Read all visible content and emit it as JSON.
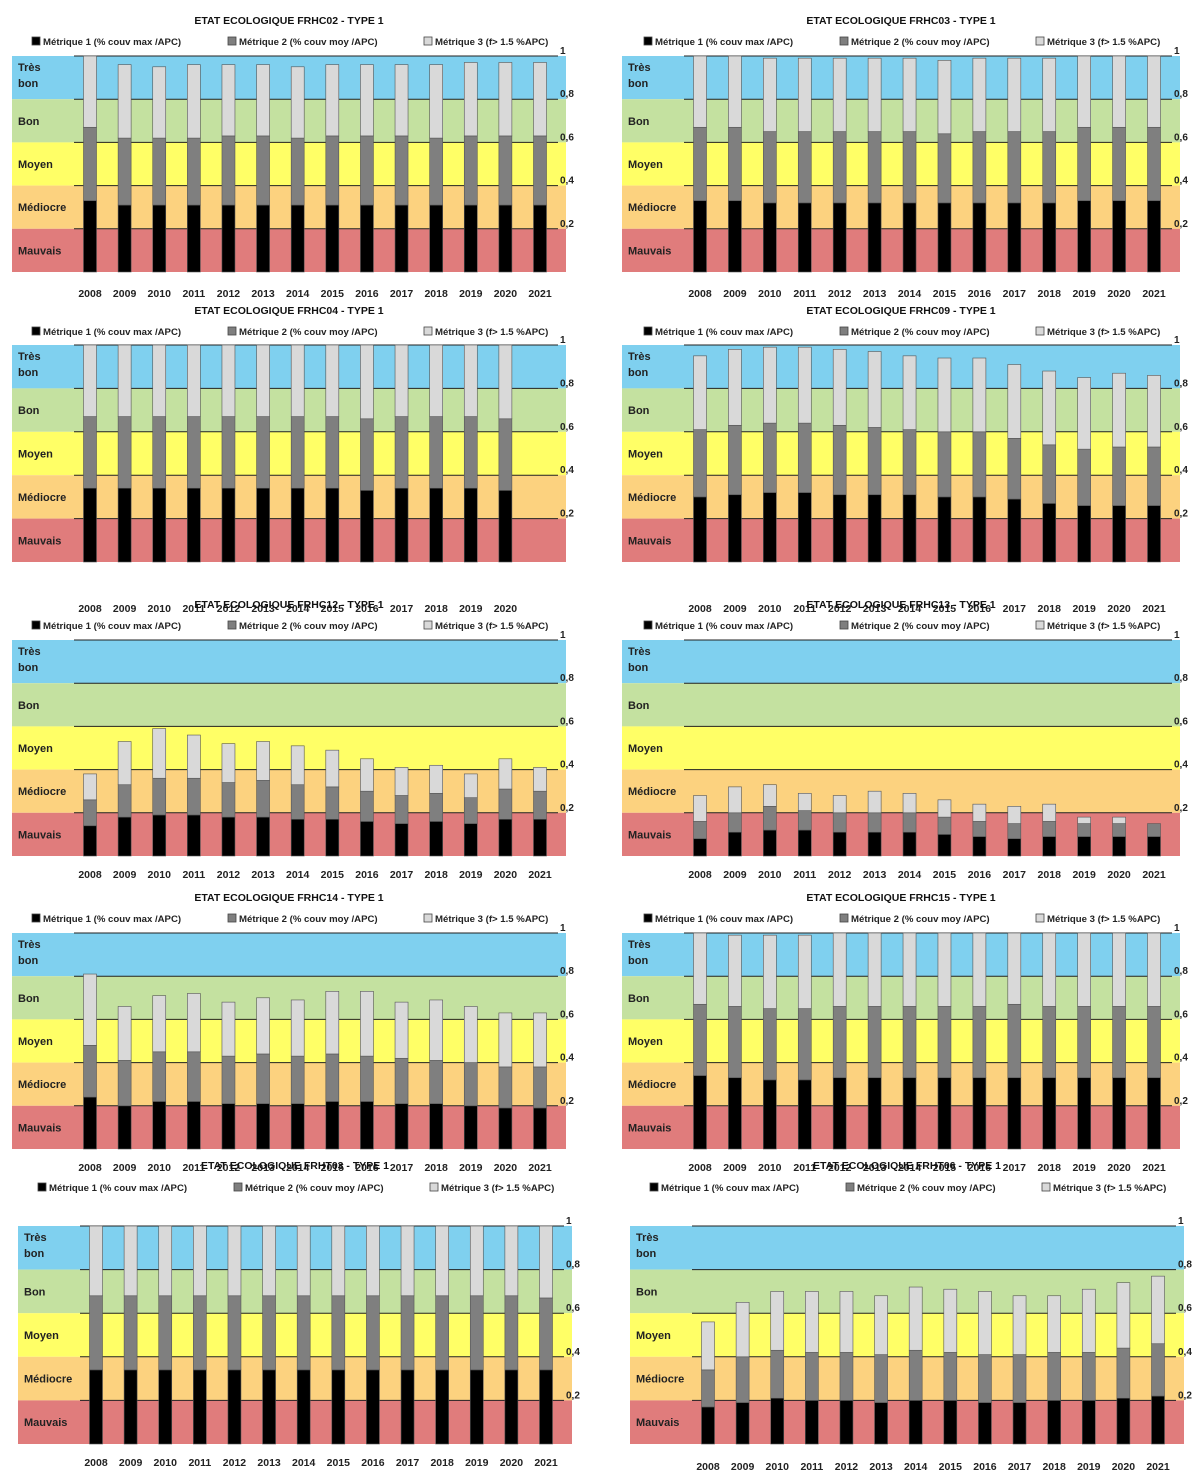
{
  "common": {
    "legend": [
      "Métrique 1 (% couv max /APC)",
      "Métrique 2 (% couv moy /APC)",
      "Métrique 3 (f> 1.5 %APC)"
    ],
    "series_colors": [
      "#000000",
      "#7f7f7f",
      "#d9d9d9"
    ],
    "bands": [
      {
        "label": "Très bon",
        "from": 0.8,
        "to": 1.0,
        "color": "#7fd0ef"
      },
      {
        "label": "Bon",
        "from": 0.6,
        "to": 0.8,
        "color": "#c4e1a0"
      },
      {
        "label": "Moyen",
        "from": 0.4,
        "to": 0.6,
        "color": "#ffff66"
      },
      {
        "label": "Médiocre",
        "from": 0.2,
        "to": 0.4,
        "color": "#fcd27f"
      },
      {
        "label": "Mauvais",
        "from": 0.0,
        "to": 0.2,
        "color": "#e07c7c"
      }
    ],
    "y_ticks": [
      "0,2",
      "0,4",
      "0,6",
      "0,8",
      "1"
    ],
    "ylim": [
      0,
      1
    ]
  },
  "chart_data": [
    {
      "type": "bar",
      "stacked": true,
      "title": "ETAT ECOLOGIQUE FRHC02 - TYPE 1",
      "categories": [
        "2008",
        "2009",
        "2010",
        "2011",
        "2012",
        "2013",
        "2014",
        "2015",
        "2016",
        "2017",
        "2018",
        "2019",
        "2020",
        "2021"
      ],
      "series": [
        {
          "name": "Métrique 1 (% couv max /APC)",
          "values": [
            0.33,
            0.31,
            0.31,
            0.31,
            0.31,
            0.31,
            0.31,
            0.31,
            0.31,
            0.31,
            0.31,
            0.31,
            0.31,
            0.31
          ]
        },
        {
          "name": "Métrique 2 (% couv moy /APC)",
          "values": [
            0.34,
            0.31,
            0.31,
            0.31,
            0.32,
            0.32,
            0.31,
            0.32,
            0.32,
            0.32,
            0.31,
            0.32,
            0.32,
            0.32
          ]
        },
        {
          "name": "Métrique 3 (f> 1.5 %APC)",
          "values": [
            0.33,
            0.34,
            0.33,
            0.34,
            0.33,
            0.33,
            0.33,
            0.33,
            0.33,
            0.33,
            0.34,
            0.34,
            0.34,
            0.34
          ]
        }
      ],
      "ylim": [
        0,
        1
      ]
    },
    {
      "type": "bar",
      "stacked": true,
      "title": "ETAT ECOLOGIQUE FRHC03 - TYPE 1",
      "categories": [
        "2008",
        "2009",
        "2010",
        "2011",
        "2012",
        "2013",
        "2014",
        "2015",
        "2016",
        "2017",
        "2018",
        "2019",
        "2020",
        "2021"
      ],
      "series": [
        {
          "name": "Métrique 1 (% couv max /APC)",
          "values": [
            0.33,
            0.33,
            0.32,
            0.32,
            0.32,
            0.32,
            0.32,
            0.32,
            0.32,
            0.32,
            0.32,
            0.33,
            0.33,
            0.33
          ]
        },
        {
          "name": "Métrique 2 (% couv moy /APC)",
          "values": [
            0.34,
            0.34,
            0.33,
            0.33,
            0.33,
            0.33,
            0.33,
            0.32,
            0.33,
            0.33,
            0.33,
            0.34,
            0.34,
            0.34
          ]
        },
        {
          "name": "Métrique 3 (f> 1.5 %APC)",
          "values": [
            0.33,
            0.33,
            0.34,
            0.34,
            0.34,
            0.34,
            0.34,
            0.34,
            0.34,
            0.34,
            0.34,
            0.33,
            0.33,
            0.33
          ]
        }
      ],
      "ylim": [
        0,
        1
      ]
    },
    {
      "type": "bar",
      "stacked": true,
      "title": "ETAT ECOLOGIQUE FRHC04 - TYPE 1",
      "categories": [
        "2008",
        "2009",
        "2010",
        "2011",
        "2012",
        "2013",
        "2014",
        "2015",
        "2016",
        "2017",
        "2018",
        "2019",
        "2020"
      ],
      "series": [
        {
          "name": "Métrique 1 (% couv max /APC)",
          "values": [
            0.34,
            0.34,
            0.34,
            0.34,
            0.34,
            0.34,
            0.34,
            0.34,
            0.33,
            0.34,
            0.34,
            0.34,
            0.33
          ]
        },
        {
          "name": "Métrique 2 (% couv moy /APC)",
          "values": [
            0.33,
            0.33,
            0.33,
            0.33,
            0.33,
            0.33,
            0.33,
            0.33,
            0.33,
            0.33,
            0.33,
            0.33,
            0.33
          ]
        },
        {
          "name": "Métrique 3 (f> 1.5 %APC)",
          "values": [
            0.33,
            0.33,
            0.33,
            0.33,
            0.33,
            0.33,
            0.33,
            0.33,
            0.34,
            0.33,
            0.33,
            0.33,
            0.34
          ]
        }
      ],
      "ylim": [
        0,
        1
      ]
    },
    {
      "type": "bar",
      "stacked": true,
      "title": "ETAT ECOLOGIQUE FRHC09 - TYPE 1",
      "categories": [
        "2008",
        "2009",
        "2010",
        "2011",
        "2012",
        "2013",
        "2014",
        "2015",
        "2016",
        "2017",
        "2018",
        "2019",
        "2020",
        "2021"
      ],
      "series": [
        {
          "name": "Métrique 1 (% couv max /APC)",
          "values": [
            0.3,
            0.31,
            0.32,
            0.32,
            0.31,
            0.31,
            0.31,
            0.3,
            0.3,
            0.29,
            0.27,
            0.26,
            0.26,
            0.26
          ]
        },
        {
          "name": "Métrique 2 (% couv moy /APC)",
          "values": [
            0.31,
            0.32,
            0.32,
            0.32,
            0.32,
            0.31,
            0.3,
            0.3,
            0.3,
            0.28,
            0.27,
            0.26,
            0.27,
            0.27
          ]
        },
        {
          "name": "Métrique 3 (f> 1.5 %APC)",
          "values": [
            0.34,
            0.35,
            0.35,
            0.35,
            0.35,
            0.35,
            0.34,
            0.34,
            0.34,
            0.34,
            0.34,
            0.33,
            0.34,
            0.33
          ]
        }
      ],
      "ylim": [
        0,
        1
      ]
    },
    {
      "type": "bar",
      "stacked": true,
      "title": "ETAT ECOLOGIQUE FRHC12 - TYPE 1",
      "categories": [
        "2008",
        "2009",
        "2010",
        "2011",
        "2012",
        "2013",
        "2014",
        "2015",
        "2016",
        "2017",
        "2018",
        "2019",
        "2020",
        "2021"
      ],
      "series": [
        {
          "name": "Métrique 1 (% couv max /APC)",
          "values": [
            0.14,
            0.18,
            0.19,
            0.19,
            0.18,
            0.18,
            0.17,
            0.17,
            0.16,
            0.15,
            0.16,
            0.15,
            0.17,
            0.17
          ]
        },
        {
          "name": "Métrique 2 (% couv moy /APC)",
          "values": [
            0.12,
            0.15,
            0.17,
            0.17,
            0.16,
            0.17,
            0.16,
            0.15,
            0.14,
            0.13,
            0.13,
            0.12,
            0.14,
            0.13
          ]
        },
        {
          "name": "Métrique 3 (f> 1.5 %APC)",
          "values": [
            0.12,
            0.2,
            0.23,
            0.2,
            0.18,
            0.18,
            0.18,
            0.17,
            0.15,
            0.13,
            0.13,
            0.11,
            0.14,
            0.11
          ]
        }
      ],
      "ylim": [
        0,
        1
      ]
    },
    {
      "type": "bar",
      "stacked": true,
      "title": "ETAT ECOLOGIQUE FRHC13 - TYPE 1",
      "categories": [
        "2008",
        "2009",
        "2010",
        "2011",
        "2012",
        "2013",
        "2014",
        "2015",
        "2016",
        "2017",
        "2018",
        "2019",
        "2020",
        "2021"
      ],
      "series": [
        {
          "name": "Métrique 1 (% couv max /APC)",
          "values": [
            0.08,
            0.11,
            0.12,
            0.12,
            0.11,
            0.11,
            0.11,
            0.1,
            0.09,
            0.08,
            0.09,
            0.09,
            0.09,
            0.09
          ]
        },
        {
          "name": "Métrique 2 (% couv moy /APC)",
          "values": [
            0.08,
            0.09,
            0.11,
            0.09,
            0.09,
            0.09,
            0.09,
            0.08,
            0.07,
            0.07,
            0.07,
            0.06,
            0.06,
            0.06
          ]
        },
        {
          "name": "Métrique 3 (f> 1.5 %APC)",
          "values": [
            0.12,
            0.12,
            0.1,
            0.08,
            0.08,
            0.1,
            0.09,
            0.08,
            0.08,
            0.08,
            0.08,
            0.03,
            0.03,
            0.0
          ]
        }
      ],
      "ylim": [
        0,
        1
      ]
    },
    {
      "type": "bar",
      "stacked": true,
      "title": "ETAT ECOLOGIQUE FRHC14 - TYPE 1",
      "categories": [
        "2008",
        "2009",
        "2010",
        "2011",
        "2012",
        "2013",
        "2014",
        "2015",
        "2016",
        "2017",
        "2018",
        "2019",
        "2020",
        "2021"
      ],
      "series": [
        {
          "name": "Métrique 1 (% couv max /APC)",
          "values": [
            0.24,
            0.2,
            0.22,
            0.22,
            0.21,
            0.21,
            0.21,
            0.22,
            0.22,
            0.21,
            0.21,
            0.2,
            0.19,
            0.19
          ]
        },
        {
          "name": "Métrique 2 (% couv moy /APC)",
          "values": [
            0.24,
            0.21,
            0.23,
            0.23,
            0.22,
            0.23,
            0.22,
            0.22,
            0.21,
            0.21,
            0.2,
            0.2,
            0.19,
            0.19
          ]
        },
        {
          "name": "Métrique 3 (f> 1.5 %APC)",
          "values": [
            0.33,
            0.25,
            0.26,
            0.27,
            0.25,
            0.26,
            0.26,
            0.29,
            0.3,
            0.26,
            0.28,
            0.26,
            0.25,
            0.25
          ]
        }
      ],
      "ylim": [
        0,
        1
      ]
    },
    {
      "type": "bar",
      "stacked": true,
      "title": "ETAT ECOLOGIQUE FRHC15 - TYPE 1",
      "categories": [
        "2008",
        "2009",
        "2010",
        "2011",
        "2012",
        "2013",
        "2014",
        "2015",
        "2016",
        "2017",
        "2018",
        "2019",
        "2020",
        "2021"
      ],
      "series": [
        {
          "name": "Métrique 1 (% couv max /APC)",
          "values": [
            0.34,
            0.33,
            0.32,
            0.32,
            0.33,
            0.33,
            0.33,
            0.33,
            0.33,
            0.33,
            0.33,
            0.33,
            0.33,
            0.33
          ]
        },
        {
          "name": "Métrique 2 (% couv moy /APC)",
          "values": [
            0.33,
            0.33,
            0.33,
            0.33,
            0.33,
            0.33,
            0.33,
            0.33,
            0.33,
            0.34,
            0.33,
            0.33,
            0.33,
            0.33
          ]
        },
        {
          "name": "Métrique 3 (f> 1.5 %APC)",
          "values": [
            0.33,
            0.33,
            0.34,
            0.34,
            0.34,
            0.34,
            0.34,
            0.34,
            0.34,
            0.33,
            0.34,
            0.34,
            0.34,
            0.34
          ]
        }
      ],
      "ylim": [
        0,
        1
      ]
    },
    {
      "type": "bar",
      "stacked": true,
      "title": "ETAT ECOLOGIQUE FRHT03 - TYPE 1",
      "categories": [
        "2008",
        "2009",
        "2010",
        "2011",
        "2012",
        "2013",
        "2014",
        "2015",
        "2016",
        "2017",
        "2018",
        "2019",
        "2020",
        "2021"
      ],
      "series": [
        {
          "name": "Métrique 1 (% couv max /APC)",
          "values": [
            0.34,
            0.34,
            0.34,
            0.34,
            0.34,
            0.34,
            0.34,
            0.34,
            0.34,
            0.34,
            0.34,
            0.34,
            0.34,
            0.34
          ]
        },
        {
          "name": "Métrique 2 (% couv moy /APC)",
          "values": [
            0.34,
            0.34,
            0.34,
            0.34,
            0.34,
            0.34,
            0.34,
            0.34,
            0.34,
            0.34,
            0.34,
            0.34,
            0.34,
            0.33
          ]
        },
        {
          "name": "Métrique 3 (f> 1.5 %APC)",
          "values": [
            0.32,
            0.32,
            0.32,
            0.32,
            0.32,
            0.32,
            0.32,
            0.32,
            0.32,
            0.32,
            0.32,
            0.32,
            0.32,
            0.33
          ]
        }
      ],
      "ylim": [
        0,
        1
      ]
    },
    {
      "type": "bar",
      "stacked": true,
      "title": "ETAT ECOLOGIQUE FRHT06 - TYPE 1",
      "categories": [
        "2008",
        "2009",
        "2010",
        "2011",
        "2012",
        "2013",
        "2014",
        "2015",
        "2016",
        "2017",
        "2018",
        "2019",
        "2020",
        "2021"
      ],
      "series": [
        {
          "name": "Métrique 1 (% couv max /APC)",
          "values": [
            0.17,
            0.19,
            0.21,
            0.2,
            0.2,
            0.19,
            0.2,
            0.2,
            0.19,
            0.19,
            0.2,
            0.2,
            0.21,
            0.22
          ]
        },
        {
          "name": "Métrique 2 (% couv moy /APC)",
          "values": [
            0.17,
            0.21,
            0.22,
            0.22,
            0.22,
            0.22,
            0.23,
            0.22,
            0.22,
            0.22,
            0.22,
            0.22,
            0.23,
            0.24
          ]
        },
        {
          "name": "Métrique 3 (f> 1.5 %APC)",
          "values": [
            0.22,
            0.25,
            0.27,
            0.28,
            0.28,
            0.27,
            0.29,
            0.29,
            0.29,
            0.27,
            0.26,
            0.29,
            0.3,
            0.31
          ]
        }
      ],
      "ylim": [
        0,
        1
      ]
    }
  ]
}
